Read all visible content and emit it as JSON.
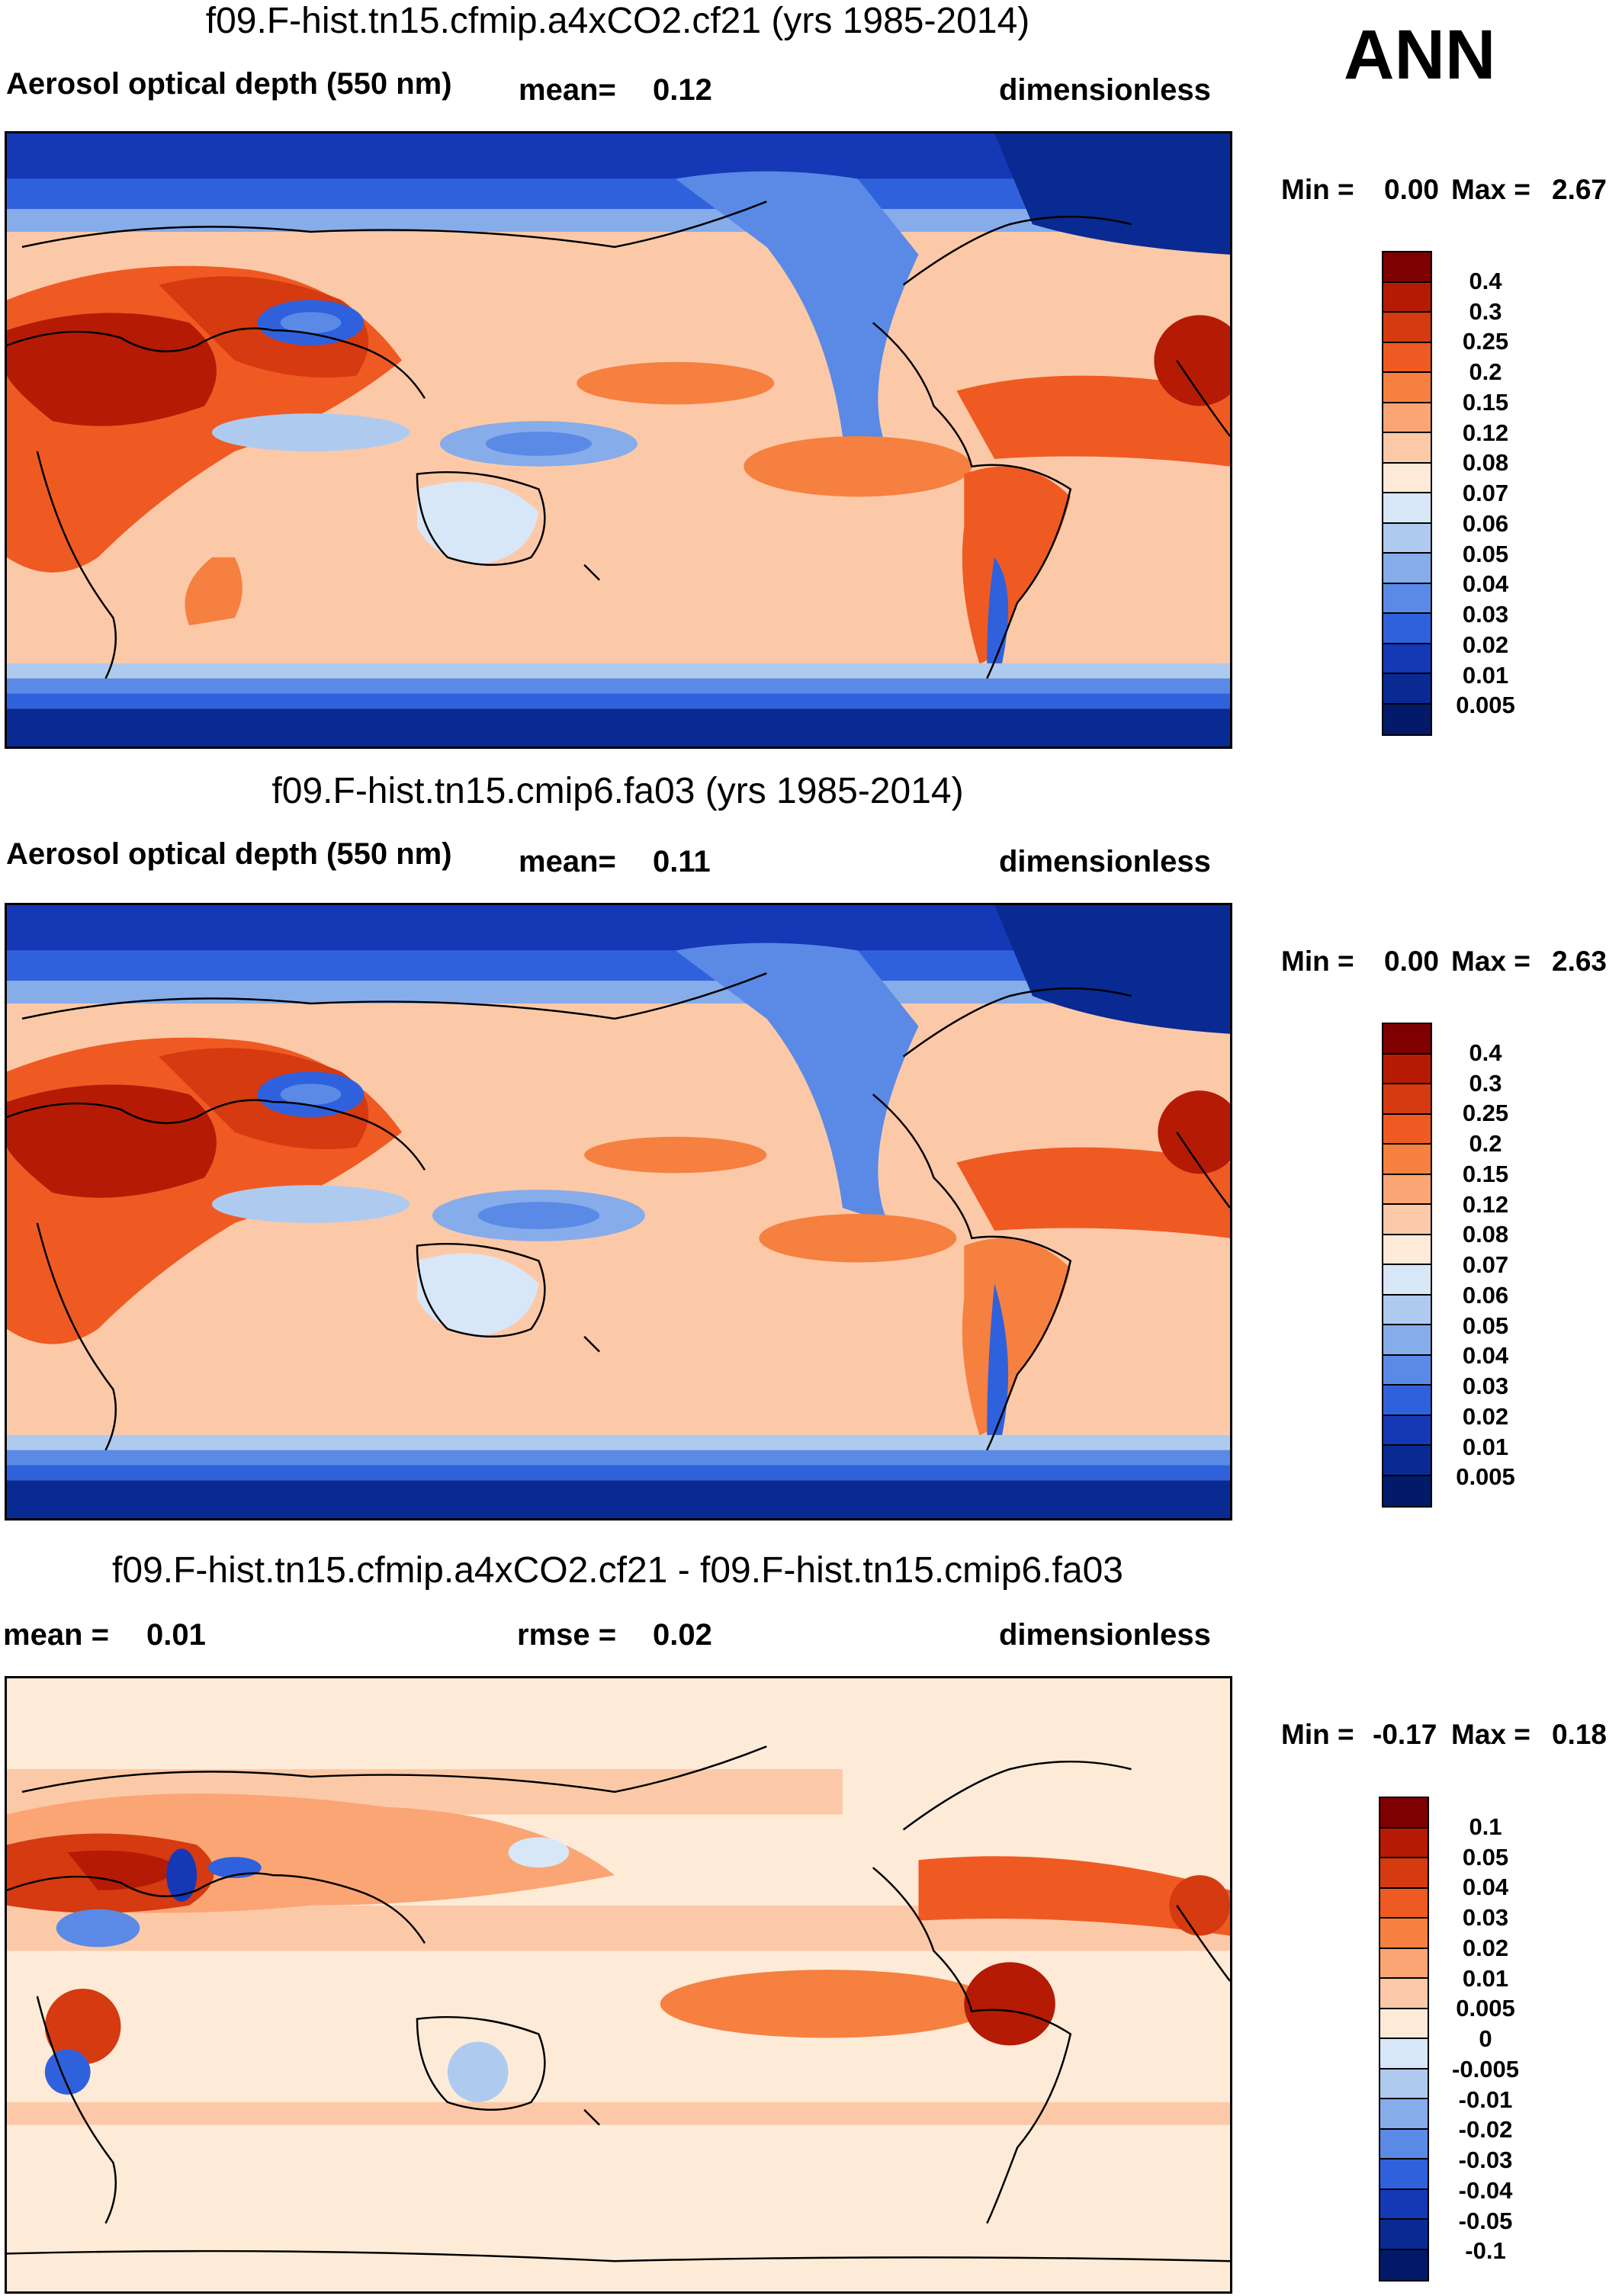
{
  "season": "ANN",
  "panels": [
    {
      "title": "f09.F-hist.tn15.cfmip.a4xCO2.cf21 (yrs 1985-2014)",
      "left": "Aerosol optical depth (550 nm)",
      "middle_label": "mean=",
      "middle_value": "0.12",
      "right": "dimensionless",
      "min_label": "Min =",
      "min_value": "0.00",
      "max_label": "Max =",
      "max_value": "2.67"
    },
    {
      "title": "f09.F-hist.tn15.cmip6.fa03 (yrs 1985-2014)",
      "left": "Aerosol optical depth (550 nm)",
      "middle_label": "mean=",
      "middle_value": "0.11",
      "right": "dimensionless",
      "min_label": "Min =",
      "min_value": "0.00",
      "max_label": "Max =",
      "max_value": "2.63"
    },
    {
      "title": "f09.F-hist.tn15.cfmip.a4xCO2.cf21 - f09.F-hist.tn15.cmip6.fa03",
      "left_label": "mean =",
      "left_value": "0.01",
      "middle_label": "rmse =",
      "middle_value": "0.02",
      "right": "dimensionless",
      "min_label": "Min =",
      "min_value": "-0.17",
      "max_label": "Max =",
      "max_value": "0.18"
    }
  ],
  "colorbars": {
    "abs": {
      "labels": [
        "0.4",
        "0.3",
        "0.25",
        "0.2",
        "0.15",
        "0.12",
        "0.08",
        "0.07",
        "0.06",
        "0.05",
        "0.04",
        "0.03",
        "0.02",
        "0.01",
        "0.005"
      ],
      "colors": [
        "#7f0000",
        "#b51a05",
        "#d53a11",
        "#ef5a22",
        "#f6803f",
        "#fba574",
        "#fcc9a8",
        "#fdebd8",
        "#d8e7f7",
        "#aecbef",
        "#86acea",
        "#5a8ae6",
        "#3061dc",
        "#1538b7",
        "#082a92",
        "#031a6a"
      ]
    },
    "diff": {
      "labels": [
        "0.1",
        "0.05",
        "0.04",
        "0.03",
        "0.02",
        "0.01",
        "0.005",
        "0",
        "-0.005",
        "-0.01",
        "-0.02",
        "-0.03",
        "-0.04",
        "-0.05",
        "-0.1"
      ],
      "colors": [
        "#7f0000",
        "#b51a05",
        "#d53a11",
        "#ef5a22",
        "#f6803f",
        "#fba574",
        "#fcc9a8",
        "#fdebd8",
        "#d8e7f7",
        "#aecbef",
        "#86acea",
        "#5a8ae6",
        "#3061dc",
        "#1538b7",
        "#082a92",
        "#031a6a"
      ]
    }
  }
}
